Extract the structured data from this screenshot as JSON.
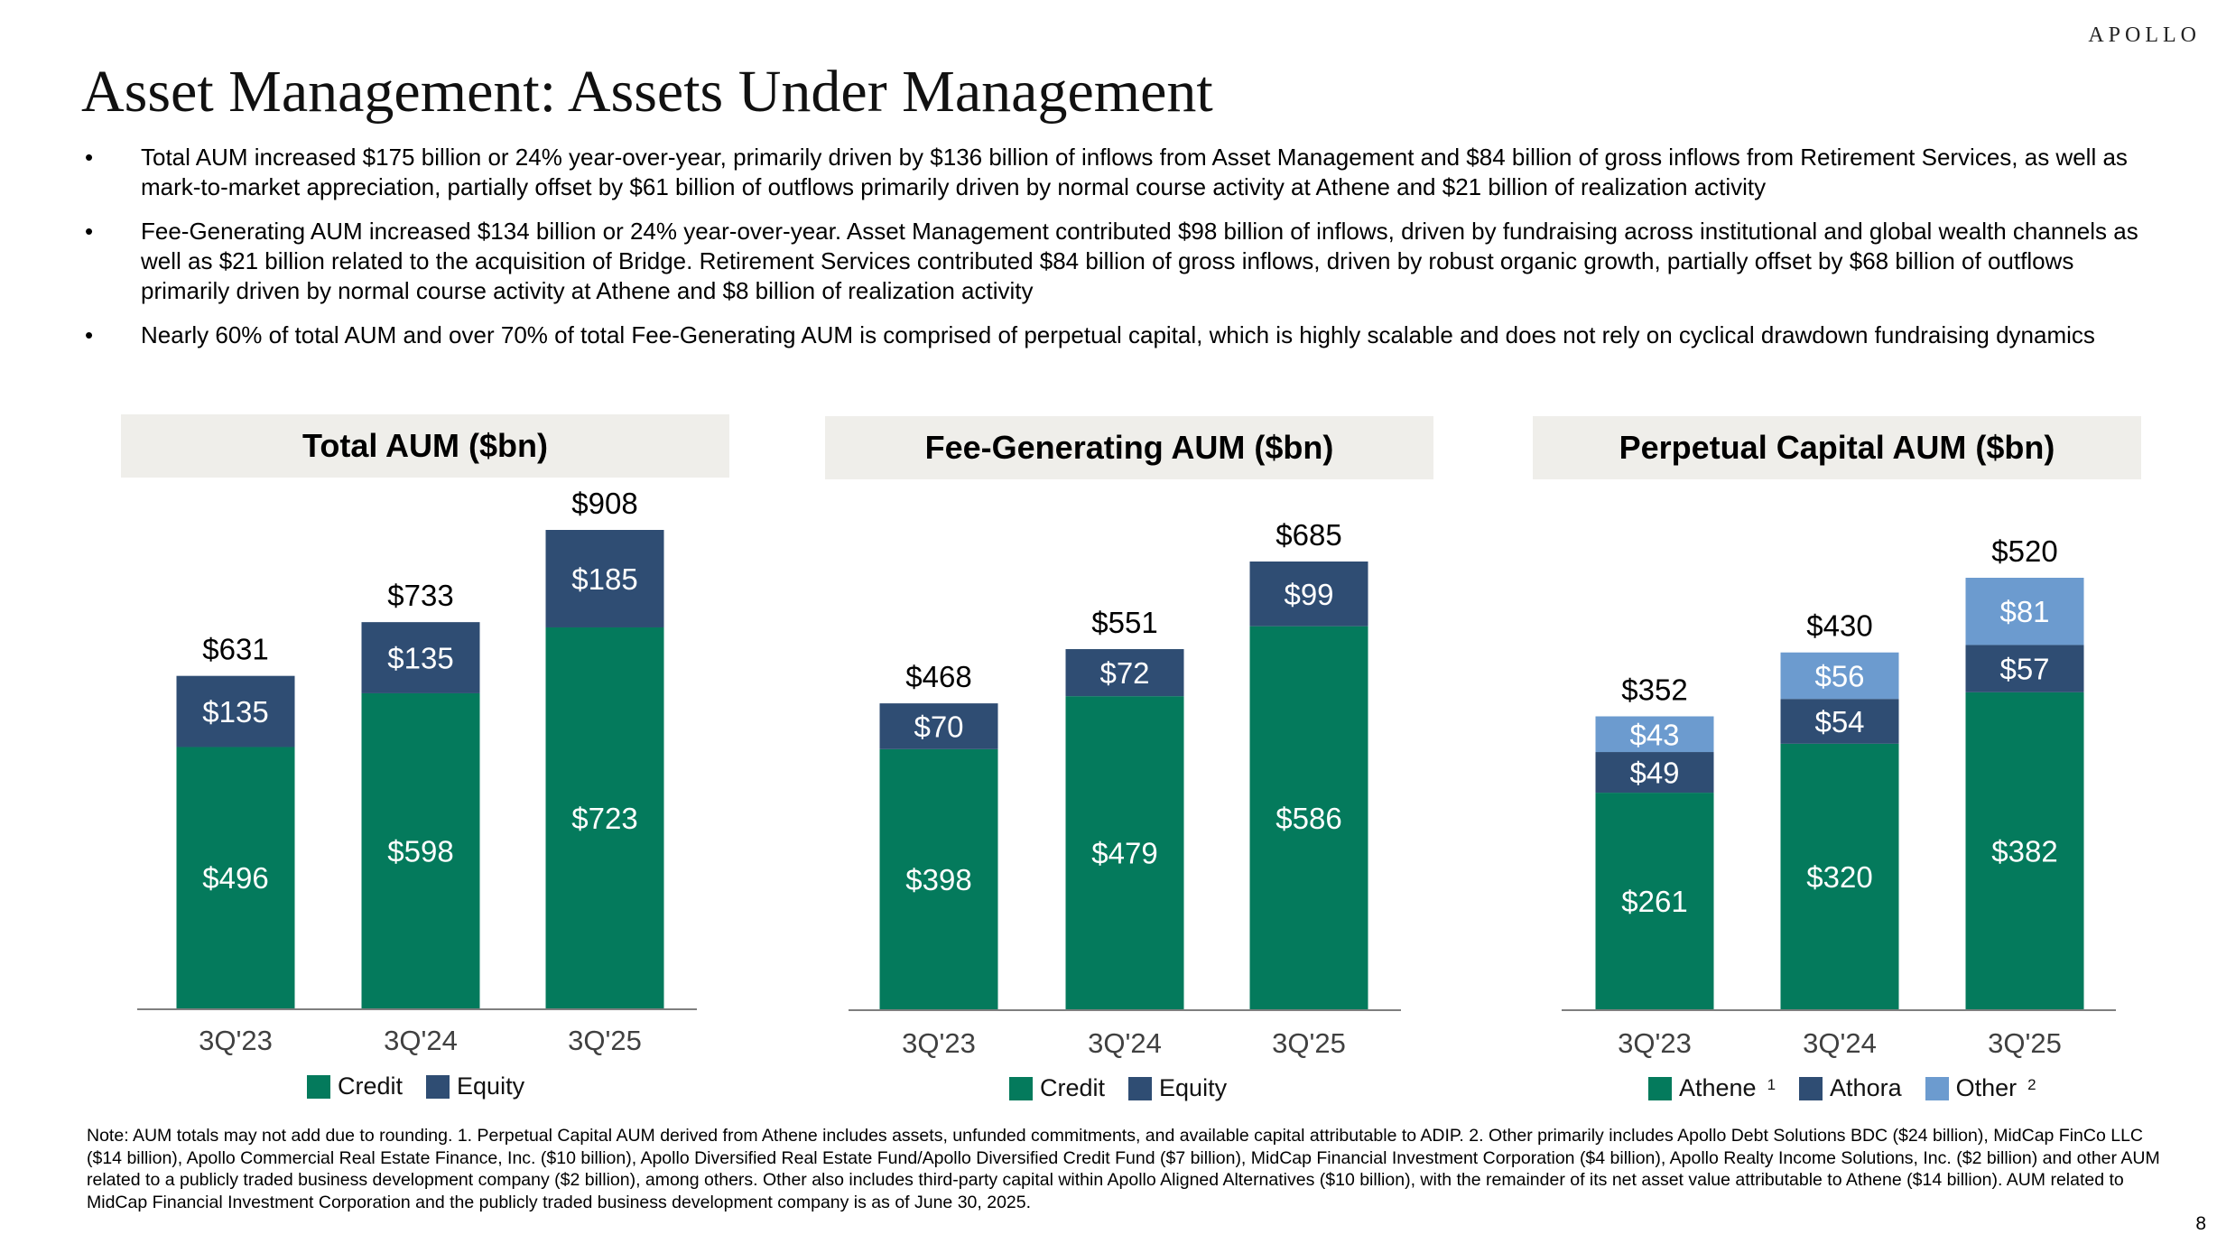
{
  "brand": "APOLLO",
  "title": "Asset Management: Assets Under Management",
  "bullets": [
    {
      "marker": "•",
      "text": "Total AUM increased $175 billion or 24% year-over-year, primarily driven by $136 billion of inflows from Asset Management and $84 billion of gross inflows from Retirement Services, as well as mark-to-market appreciation, partially offset by $61 billion of outflows primarily driven by normal course activity at Athene and $21 billion of realization activity"
    },
    {
      "marker": "•",
      "text": "Fee-Generating AUM increased $134 billion or 24% year-over-year. Asset Management contributed $98 billion of inflows, driven by fundraising across institutional and global wealth channels as well as $21 billion related to the acquisition of Bridge. Retirement Services contributed $84 billion of gross inflows, driven by robust organic growth, partially offset by $68 billion of outflows primarily driven by normal course activity at Athene and $8 billion of realization activity"
    },
    {
      "marker": "•",
      "text": "Nearly 60% of total AUM and over 70% of total Fee-Generating AUM is comprised of perpetual capital, which is highly scalable and does not rely on cyclical drawdown fundraising dynamics"
    }
  ],
  "colors": {
    "green": "#047a5c",
    "navy": "#2f4d73",
    "light_blue": "#6c9bcf",
    "header_bg": "#efeeea",
    "axis": "#7f7f7f",
    "tick_text": "#404040"
  },
  "chart_data": [
    {
      "type": "bar",
      "stacked": true,
      "title": "Total AUM ($bn)",
      "categories": [
        "3Q'23",
        "3Q'24",
        "3Q'25"
      ],
      "series": [
        {
          "name": "Credit",
          "values": [
            496,
            598,
            723
          ],
          "labels": [
            "$496",
            "$598",
            "$723"
          ],
          "color": "#047a5c"
        },
        {
          "name": "Equity",
          "values": [
            135,
            135,
            185
          ],
          "labels": [
            "$135",
            "$135",
            "$185"
          ],
          "color": "#2f4d73"
        }
      ],
      "totals": [
        631,
        733,
        908
      ],
      "total_labels": [
        "$631",
        "$733",
        "$908"
      ],
      "legend": [
        {
          "name": "Credit",
          "sup": ""
        },
        {
          "name": "Equity",
          "sup": ""
        }
      ],
      "ylim": [
        0,
        908
      ]
    },
    {
      "type": "bar",
      "stacked": true,
      "title": "Fee-Generating AUM ($bn)",
      "categories": [
        "3Q'23",
        "3Q'24",
        "3Q'25"
      ],
      "series": [
        {
          "name": "Credit",
          "values": [
            398,
            479,
            586
          ],
          "labels": [
            "$398",
            "$479",
            "$586"
          ],
          "color": "#047a5c"
        },
        {
          "name": "Equity",
          "values": [
            70,
            72,
            99
          ],
          "labels": [
            "$70",
            "$72",
            "$99"
          ],
          "color": "#2f4d73"
        }
      ],
      "totals": [
        468,
        551,
        685
      ],
      "total_labels": [
        "$468",
        "$551",
        "$685"
      ],
      "legend": [
        {
          "name": "Credit",
          "sup": ""
        },
        {
          "name": "Equity",
          "sup": ""
        }
      ],
      "ylim": [
        0,
        685
      ]
    },
    {
      "type": "bar",
      "stacked": true,
      "title": "Perpetual Capital AUM ($bn)",
      "categories": [
        "3Q'23",
        "3Q'24",
        "3Q'25"
      ],
      "series": [
        {
          "name": "Athene",
          "values": [
            261,
            320,
            382
          ],
          "labels": [
            "$261",
            "$320",
            "$382"
          ],
          "color": "#047a5c"
        },
        {
          "name": "Athora",
          "values": [
            49,
            54,
            57
          ],
          "labels": [
            "$49",
            "$54",
            "$57"
          ],
          "color": "#2f4d73"
        },
        {
          "name": "Other",
          "values": [
            43,
            56,
            81
          ],
          "labels": [
            "$43",
            "$56",
            "$81"
          ],
          "color": "#6c9bcf"
        }
      ],
      "totals": [
        352,
        430,
        520
      ],
      "total_labels": [
        "$352",
        "$430",
        "$520"
      ],
      "legend": [
        {
          "name": "Athene",
          "sup": "1"
        },
        {
          "name": "Athora",
          "sup": ""
        },
        {
          "name": "Other",
          "sup": "2"
        }
      ],
      "ylim": [
        0,
        520
      ]
    }
  ],
  "note": "Note: AUM totals may not add due to rounding. 1. Perpetual Capital AUM derived from Athene includes assets, unfunded commitments, and available capital attributable to ADIP. 2. Other primarily includes Apollo Debt Solutions BDC ($24 billion), MidCap FinCo LLC ($14 billion), Apollo Commercial Real Estate Finance, Inc. ($10 billion), Apollo Diversified Real Estate Fund/Apollo Diversified Credit Fund ($7 billion), MidCap Financial Investment Corporation ($4 billion), Apollo Realty Income Solutions, Inc. ($2 billion) and other AUM related to a publicly traded business development company ($2 billion), among others. Other also includes third-party capital within Apollo Aligned Alternatives ($10 billion), with the remainder of its net asset value attributable to Athene ($14 billion). AUM related to MidCap Financial Investment Corporation and the publicly traded business development company is as of June 30, 2025.",
  "page_number": "8"
}
